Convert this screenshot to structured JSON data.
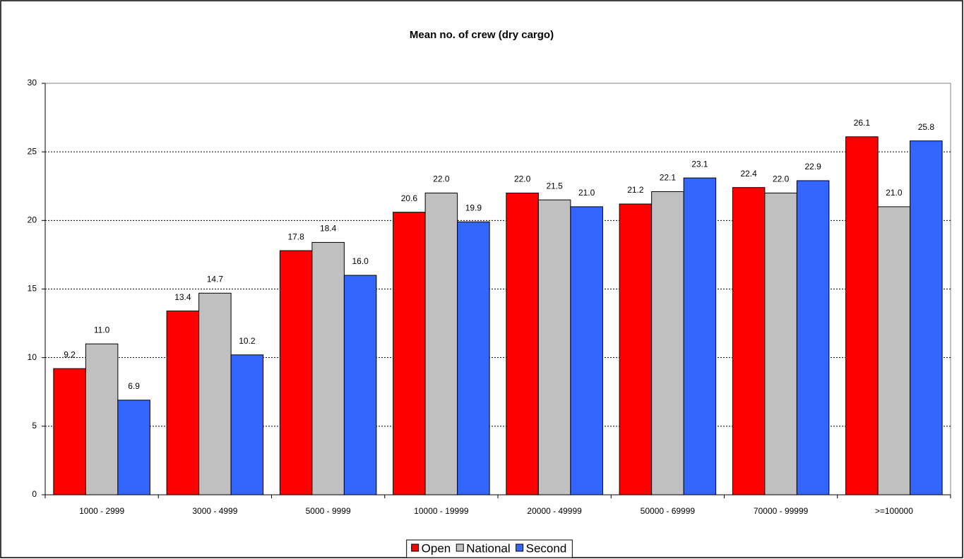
{
  "chart_data": {
    "type": "bar",
    "title": "Mean no. of crew (dry cargo)",
    "categories": [
      "1000 - 2999",
      "3000 - 4999",
      "5000 - 9999",
      "10000 - 19999",
      "20000 - 49999",
      "50000 - 69999",
      "70000 - 99999",
      ">=100000"
    ],
    "series": [
      {
        "name": "Open",
        "color": "#ff0000",
        "values": [
          9.2,
          13.4,
          17.8,
          20.6,
          22.0,
          21.2,
          22.4,
          26.1
        ],
        "value_labels": [
          "9.2",
          "13.4",
          "17.8",
          "20.6",
          "22.0",
          "21.2",
          "22.4",
          "26.1"
        ]
      },
      {
        "name": "National",
        "color": "#c0c0c0",
        "values": [
          11.0,
          14.7,
          18.4,
          22.0,
          21.5,
          22.1,
          22.0,
          21.0
        ],
        "value_labels": [
          "11.0",
          "14.7",
          "18.4",
          "22.0",
          "21.5",
          "22.1",
          "22.0",
          "21.0"
        ]
      },
      {
        "name": "Second",
        "color": "#3366ff",
        "values": [
          6.9,
          10.2,
          16.0,
          19.9,
          21.0,
          23.1,
          22.9,
          25.8
        ],
        "value_labels": [
          "6.9",
          "10.2",
          "16.0",
          "19.9",
          "21.0",
          "23.1",
          "22.9",
          "25.8"
        ]
      }
    ],
    "ylim": [
      0,
      30
    ],
    "yticks": [
      0,
      5,
      10,
      15,
      20,
      25,
      30
    ],
    "grid": true,
    "legend": "bottom"
  }
}
